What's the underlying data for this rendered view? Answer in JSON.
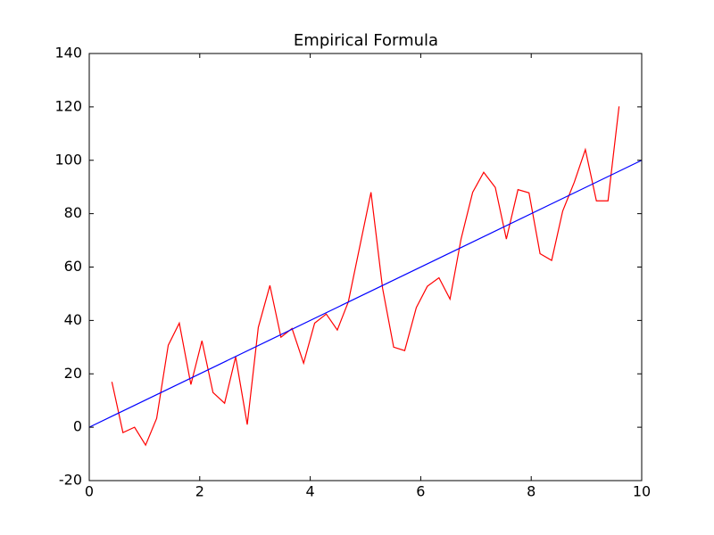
{
  "chart_data": {
    "type": "line",
    "title": "Empirical Formula",
    "series": [
      {
        "color": "#ff0000",
        "x": [
          0.41,
          0.61,
          0.82,
          1.02,
          1.22,
          1.43,
          1.63,
          1.84,
          2.04,
          2.24,
          2.45,
          2.65,
          2.86,
          3.06,
          3.27,
          3.47,
          3.67,
          3.88,
          4.08,
          4.29,
          4.49,
          4.69,
          4.9,
          5.1,
          5.31,
          5.51,
          5.71,
          5.92,
          6.12,
          6.33,
          6.53,
          6.73,
          6.94,
          7.14,
          7.35,
          7.55,
          7.76,
          7.96,
          8.16,
          8.37,
          8.57,
          8.78,
          8.98,
          9.18,
          9.39,
          9.59
        ],
        "values": [
          17,
          -2,
          0,
          -6.7,
          3.3,
          30.7,
          39,
          16,
          32.4,
          13,
          9,
          26.4,
          1,
          37.4,
          53.1,
          33.7,
          37,
          24,
          39,
          42.4,
          36.4,
          47,
          68,
          88,
          52,
          30,
          28.7,
          44.8,
          52.8,
          56,
          48,
          70.5,
          88,
          95.5,
          89.8,
          70.5,
          89,
          87.8,
          65,
          62.5,
          81,
          91.8,
          104,
          84.8,
          84.8,
          120.2
        ]
      },
      {
        "color": "#0000ff",
        "x": [
          0,
          10
        ],
        "values": [
          0,
          100
        ]
      }
    ],
    "xlim": [
      0,
      10
    ],
    "xticks": [
      0,
      2,
      4,
      6,
      8,
      10
    ],
    "ylim": [
      -20,
      140
    ],
    "yticks": [
      -20,
      0,
      20,
      40,
      60,
      80,
      100,
      120,
      140
    ],
    "grid": false
  }
}
